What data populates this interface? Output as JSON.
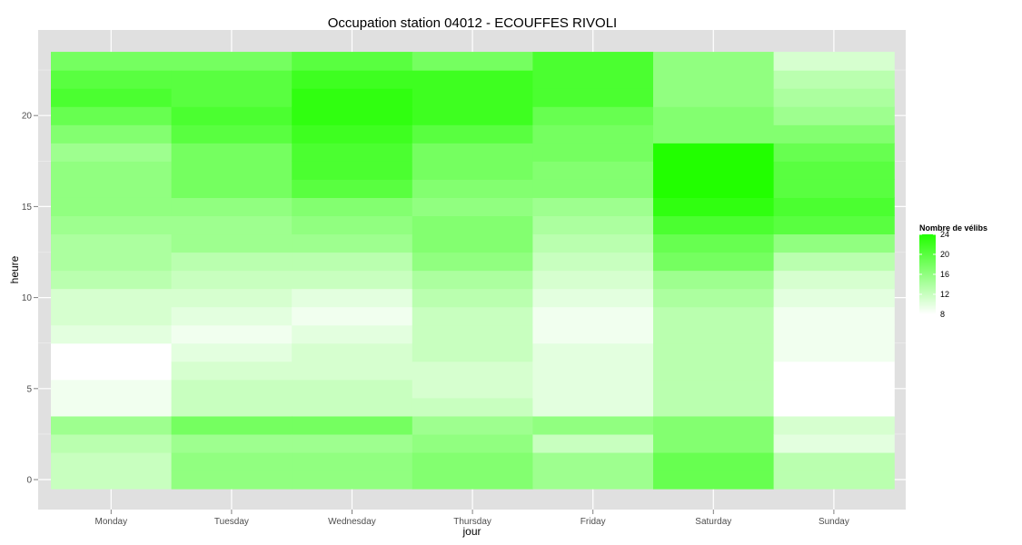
{
  "chart_data": {
    "type": "heatmap",
    "title": "Occupation station 04012 - ECOUFFES RIVOLI",
    "xlabel": "jour",
    "ylabel": "heure",
    "x_categories": [
      "Monday",
      "Tuesday",
      "Wednesday",
      "Thursday",
      "Friday",
      "Saturday",
      "Sunday"
    ],
    "y_ticks": [
      0,
      5,
      10,
      15,
      20
    ],
    "y_range": [
      -0.5,
      23.5
    ],
    "color_low": "#ffffff",
    "color_high": "#22ff00",
    "value_range": [
      8,
      24
    ],
    "grid": true,
    "panel_background": "#e0e0e0",
    "legend": {
      "title": "Nombre de vélibs",
      "breaks": [
        24,
        20,
        16,
        12,
        8
      ],
      "position": "right"
    },
    "values_by_day": [
      [
        12,
        12,
        13,
        15,
        9,
        9,
        8,
        8,
        10,
        11,
        11,
        13,
        14,
        14,
        15,
        16,
        16,
        16,
        15,
        17,
        19,
        21,
        20,
        18
      ],
      [
        16,
        16,
        15,
        18,
        12,
        12,
        11,
        10,
        9,
        10,
        11,
        12,
        13,
        15,
        15,
        16,
        18,
        18,
        18,
        20,
        21,
        20,
        20,
        18
      ],
      [
        16,
        16,
        15,
        18,
        12,
        12,
        11,
        11,
        10,
        9,
        10,
        12,
        13,
        15,
        16,
        17,
        20,
        21,
        21,
        22,
        23,
        23,
        22,
        20
      ],
      [
        17,
        17,
        16,
        15,
        12,
        11,
        11,
        12,
        12,
        12,
        13,
        14,
        16,
        17,
        17,
        16,
        17,
        18,
        18,
        20,
        22,
        22,
        22,
        18
      ],
      [
        15,
        15,
        12,
        16,
        10,
        10,
        10,
        10,
        9,
        9,
        10,
        11,
        12,
        13,
        14,
        15,
        17,
        17,
        18,
        18,
        19,
        21,
        21,
        21
      ],
      [
        19,
        19,
        17,
        17,
        13,
        13,
        13,
        13,
        13,
        13,
        14,
        15,
        18,
        19,
        21,
        23,
        24,
        24,
        24,
        17,
        17,
        16,
        16,
        16
      ],
      [
        13,
        13,
        10,
        11,
        8,
        8,
        8,
        9,
        9,
        9,
        10,
        11,
        13,
        16,
        20,
        21,
        20,
        20,
        19,
        17,
        15,
        14,
        13,
        11
      ]
    ]
  }
}
